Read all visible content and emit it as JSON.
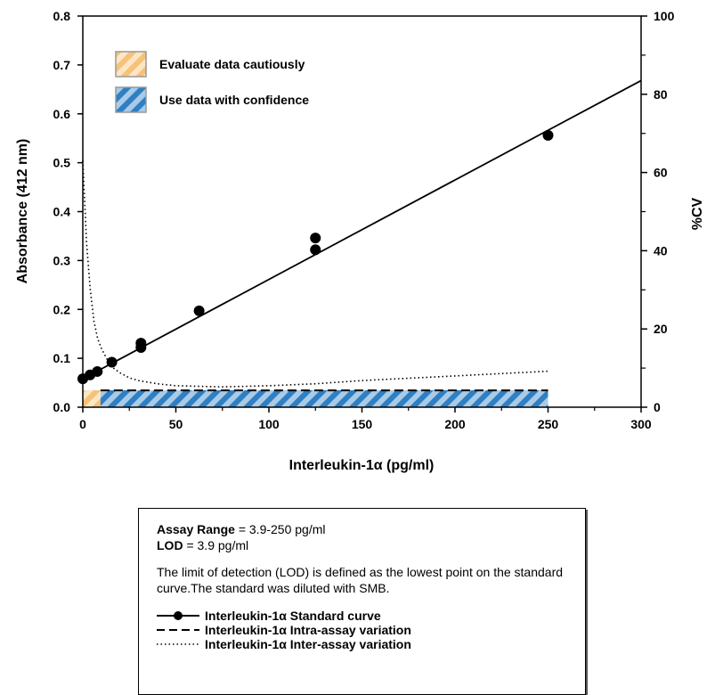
{
  "chart_data": {
    "type": "scatter",
    "xlabel": "Interleukin-1α (pg/ml)",
    "ylabel": "Absorbance (412 nm)",
    "y2label": "%CV",
    "xlim": [
      0,
      300
    ],
    "ylim": [
      0,
      0.8
    ],
    "y2lim": [
      0,
      100
    ],
    "x_ticks": [
      "0",
      "50",
      "100",
      "150",
      "200",
      "250",
      "300"
    ],
    "y_ticks": [
      "0.0",
      "0.1",
      "0.2",
      "0.3",
      "0.4",
      "0.5",
      "0.6",
      "0.7",
      "0.8"
    ],
    "y2_ticks": [
      "0",
      "20",
      "40",
      "60",
      "80",
      "100"
    ],
    "grid": false,
    "regions": [
      {
        "name": "Evaluate data cautiously",
        "x_start": 0,
        "x_end": 9.5,
        "color": "#f8c98a"
      },
      {
        "name": "Use data with confidence",
        "x_start": 9.5,
        "x_end": 250,
        "color": "#3c87c8"
      }
    ],
    "series": [
      {
        "name": "Interleukin-1α Standard curve",
        "style": "points",
        "axis": "left",
        "x": [
          0,
          3.9,
          7.8,
          15.6,
          31.25,
          31.25,
          62.5,
          125,
          125,
          250
        ],
        "y": [
          0.058,
          0.066,
          0.073,
          0.092,
          0.122,
          0.131,
          0.197,
          0.322,
          0.346,
          0.556
        ]
      },
      {
        "name": "Interleukin-1α Standard curve fit",
        "style": "solid",
        "axis": "left",
        "x": [
          0,
          300
        ],
        "y": [
          0.058,
          0.668
        ]
      },
      {
        "name": "Interleukin-1α Intra-assay variation",
        "style": "dashed",
        "axis": "right",
        "x": [
          9.5,
          250
        ],
        "y": [
          4.3,
          4.3
        ]
      },
      {
        "name": "Interleukin-1α Inter-assay variation",
        "style": "dotted",
        "axis": "right",
        "x": [
          0,
          2,
          4,
          6,
          8,
          10,
          15,
          20,
          25,
          30,
          40,
          50,
          75,
          100,
          125,
          150,
          200,
          250
        ],
        "y": [
          63,
          42,
          30,
          22,
          17.5,
          15,
          10.5,
          8.8,
          7.5,
          6.8,
          6,
          5.5,
          5.2,
          5.5,
          6,
          6.8,
          8,
          9.2
        ]
      }
    ]
  },
  "legend": {
    "cautious": "Evaluate data cautiously",
    "confidence": "Use data with confidence"
  },
  "info": {
    "range_label": "Assay Range",
    "range_value": " = 3.9-250 pg/ml",
    "lod_label": "LOD",
    "lod_value": " = 3.9 pg/ml",
    "description": "The limit of detection (LOD) is defined as the lowest point on the standard curve.The standard was diluted with SMB.",
    "key_standard": "Interleukin-1α Standard curve",
    "key_intra": "Interleukin-1α Intra-assay variation",
    "key_inter": "Interleukin-1α Inter-assay variation"
  }
}
